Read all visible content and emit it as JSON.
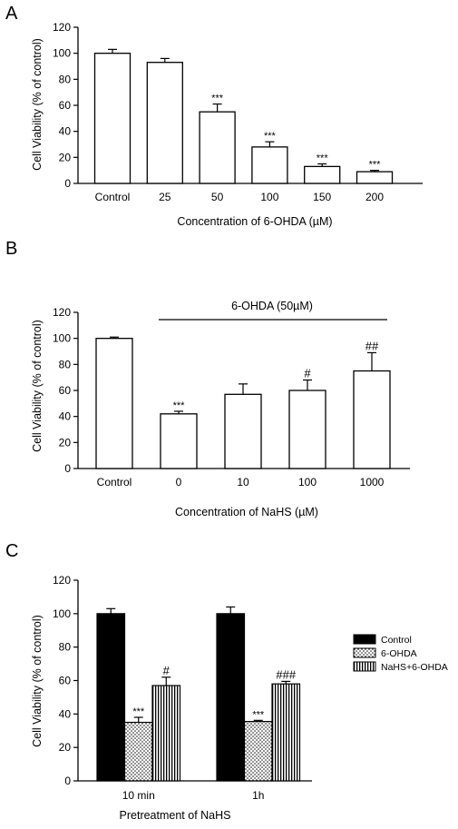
{
  "colors": {
    "axis": "#000000",
    "bar_outline": "#000000",
    "background": "#ffffff"
  },
  "chart_data": [
    {
      "panel": "A",
      "type": "bar",
      "categories": [
        "Control",
        "25",
        "50",
        "100",
        "150",
        "200"
      ],
      "values": [
        100,
        93,
        55,
        28,
        13,
        9
      ],
      "errors": [
        3,
        3,
        6,
        4,
        2,
        1
      ],
      "annotations": [
        "",
        "",
        "***",
        "***",
        "***",
        "***"
      ],
      "xlabel": "Concentration of 6-OHDA (µM)",
      "ylabel": "Cell Viability (% of control)",
      "ylim": [
        0,
        120
      ],
      "yticks": [
        "0",
        "20",
        "40",
        "60",
        "80",
        "100",
        "120"
      ],
      "grid": false
    },
    {
      "panel": "B",
      "type": "bar",
      "categories": [
        "Control",
        "0",
        "10",
        "100",
        "1000"
      ],
      "values": [
        100,
        42,
        57,
        60,
        75
      ],
      "errors": [
        1,
        2,
        8,
        8,
        14
      ],
      "annotations": [
        "",
        "***",
        "",
        "#",
        "##"
      ],
      "bracket_label": "6-OHDA (50µM)",
      "xlabel": "Concentration of NaHS (µM)",
      "ylabel": "Cell Viability (% of control)",
      "ylim": [
        0,
        120
      ],
      "yticks": [
        "0",
        "20",
        "40",
        "60",
        "80",
        "100",
        "120"
      ],
      "grid": false
    },
    {
      "panel": "C",
      "type": "bar",
      "categories": [
        "10 min",
        "1h"
      ],
      "series": [
        {
          "name": "Control",
          "pattern": "solid",
          "values": [
            100,
            100
          ],
          "errors": [
            3,
            4
          ],
          "annotations": [
            "",
            ""
          ]
        },
        {
          "name": "6-OHDA",
          "pattern": "dots",
          "values": [
            35,
            35.5
          ],
          "errors": [
            3,
            0.7
          ],
          "annotations": [
            "***",
            "***"
          ]
        },
        {
          "name": "NaHS+6-OHDA",
          "pattern": "vertical-lines",
          "values": [
            57,
            58
          ],
          "errors": [
            5,
            1.5
          ],
          "annotations": [
            "#",
            "###"
          ]
        }
      ],
      "xlabel": "Pretreatment of NaHS",
      "ylabel": "Cell Viability (% of control)",
      "ylim": [
        0,
        120
      ],
      "yticks": [
        "0",
        "20",
        "40",
        "60",
        "80",
        "100",
        "120"
      ],
      "legend_position": "right",
      "grid": false
    }
  ]
}
